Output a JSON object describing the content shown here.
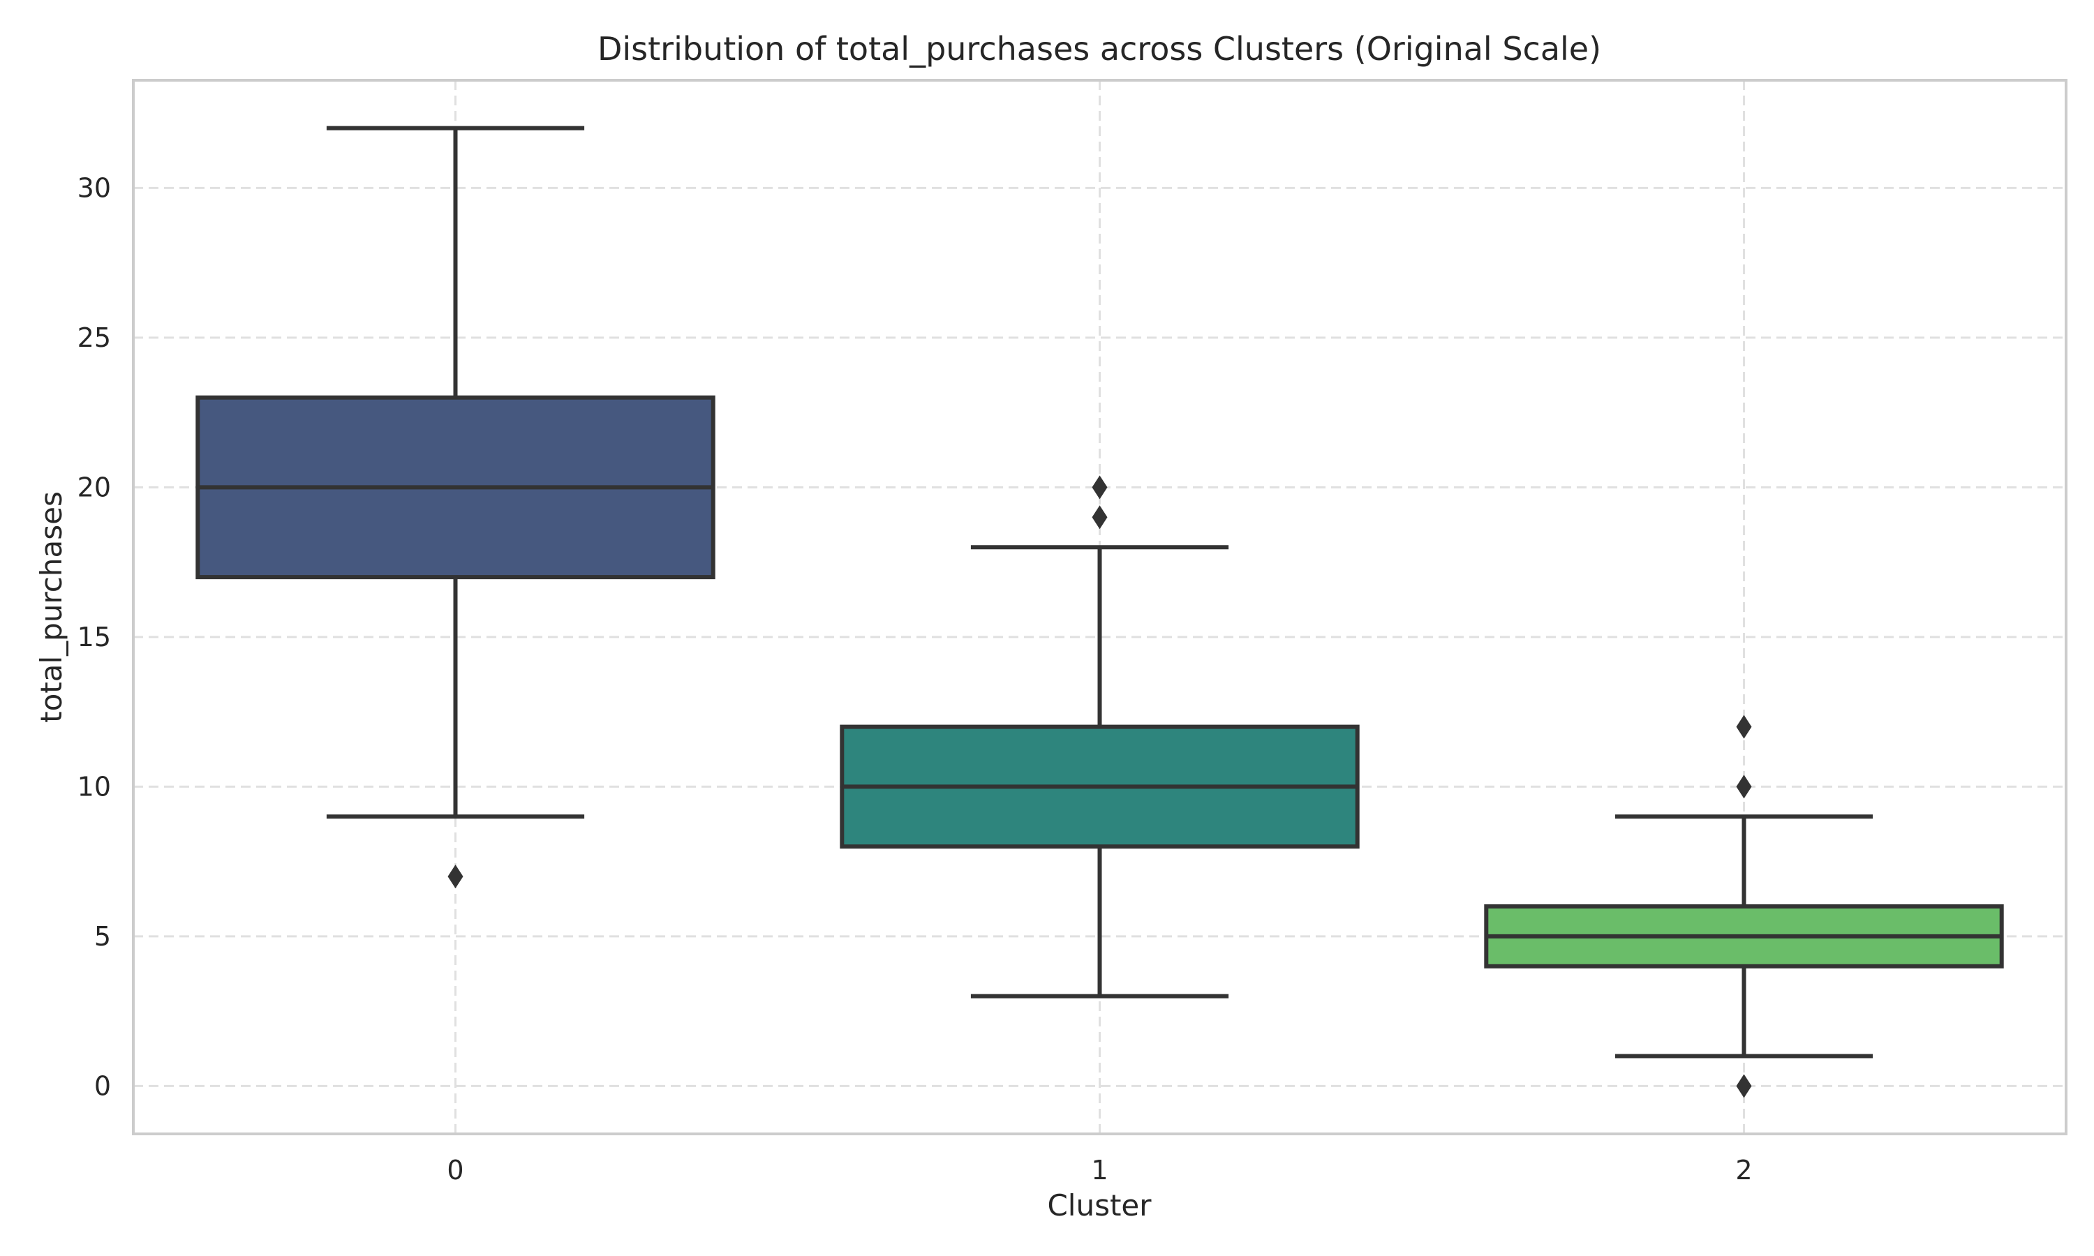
{
  "chart_data": {
    "type": "box",
    "title": "Distribution of total_purchases across Clusters (Original Scale)",
    "xlabel": "Cluster",
    "ylabel": "total_purchases",
    "categories": [
      "0",
      "1",
      "2"
    ],
    "ylim": [
      -1.6,
      33.6
    ],
    "yticks": [
      0,
      5,
      10,
      15,
      20,
      25,
      30
    ],
    "grid": true,
    "boxes": [
      {
        "category": "0",
        "whisker_low": 9,
        "q1": 17,
        "median": 20,
        "q3": 23,
        "whisker_high": 32,
        "outliers": [
          7
        ],
        "color": "#46587f"
      },
      {
        "category": "1",
        "whisker_low": 3,
        "q1": 8,
        "median": 10,
        "q3": 12,
        "whisker_high": 18,
        "outliers": [
          19,
          20
        ],
        "color": "#2e857d"
      },
      {
        "category": "2",
        "whisker_low": 1,
        "q1": 4,
        "median": 5,
        "q3": 6,
        "whisker_high": 9,
        "outliers": [
          0,
          10,
          12
        ],
        "color": "#6abd69"
      }
    ]
  }
}
